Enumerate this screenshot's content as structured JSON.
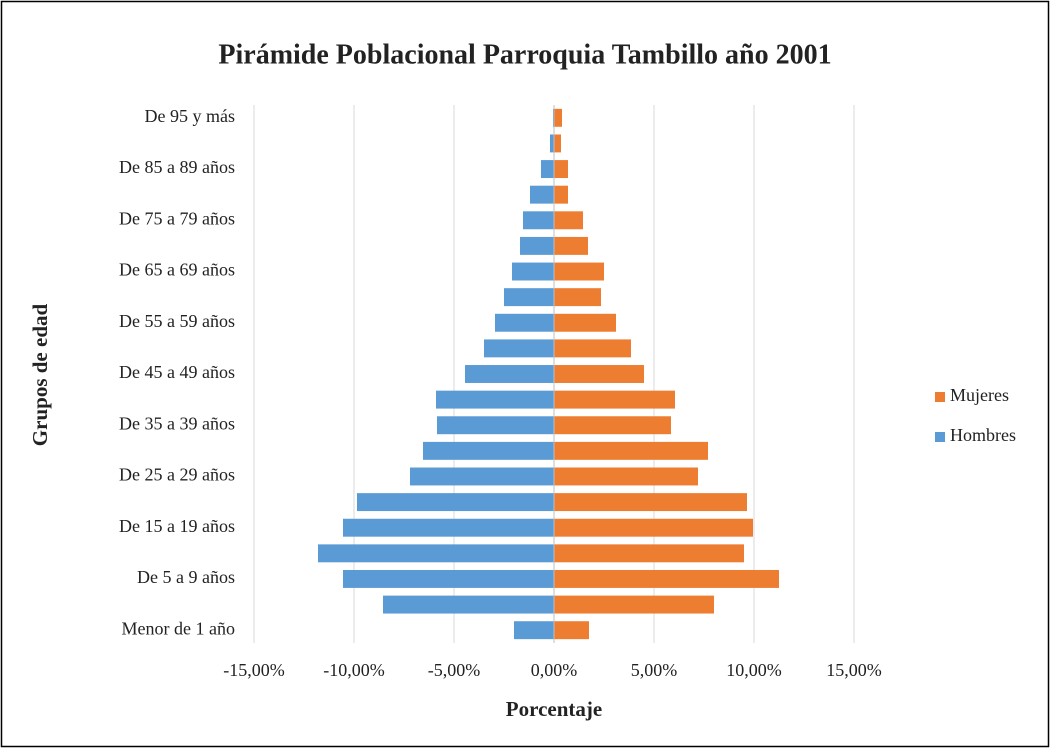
{
  "chart_data": {
    "type": "bar",
    "orientation": "horizontal",
    "stacked": true,
    "title": "Pirámide Poblacional Parroquia Tambillo año 2001",
    "x_label": "Porcentaje",
    "y_label": "Grupos de edad",
    "categories": [
      "Menor de 1 año",
      null,
      "De 5 a 9 años",
      null,
      "De 15 a 19 años",
      null,
      "De 25 a 29 años",
      null,
      "De 35 a 39 años",
      null,
      "De 45 a 49 años",
      null,
      "De 55 a 59 años",
      null,
      "De 65 a 69 años",
      null,
      "De 75 a 79 años",
      null,
      "De 85 a 89 años",
      null,
      "De 95 y más"
    ],
    "series": [
      {
        "name": "Mujeres",
        "color": "#ed7d31",
        "values": [
          1.75,
          8.0,
          11.25,
          9.5,
          9.95,
          9.65,
          7.2,
          7.7,
          5.85,
          6.05,
          4.5,
          3.85,
          3.1,
          2.35,
          2.5,
          1.7,
          1.45,
          0.7,
          0.7,
          0.35,
          0.4
        ]
      },
      {
        "name": "Hombres",
        "color": "#5b9bd5",
        "values": [
          -2.0,
          -8.55,
          -10.55,
          -11.8,
          -10.55,
          -9.85,
          -7.2,
          -6.55,
          -5.85,
          -5.9,
          -4.45,
          -3.5,
          -2.95,
          -2.5,
          -2.1,
          -1.7,
          -1.55,
          -1.2,
          -0.65,
          -0.2,
          -0.05
        ]
      }
    ],
    "xlim": [
      -15,
      15
    ],
    "xticks": [
      {
        "value": -15,
        "label": "-15,00%"
      },
      {
        "value": -10,
        "label": "-10,00%"
      },
      {
        "value": -5,
        "label": "-5,00%"
      },
      {
        "value": 0,
        "label": "0,00%"
      },
      {
        "value": 5,
        "label": "5,00%"
      },
      {
        "value": 10,
        "label": "10,00%"
      },
      {
        "value": 15,
        "label": "15,00%"
      }
    ],
    "grid": true,
    "legend": "right"
  }
}
